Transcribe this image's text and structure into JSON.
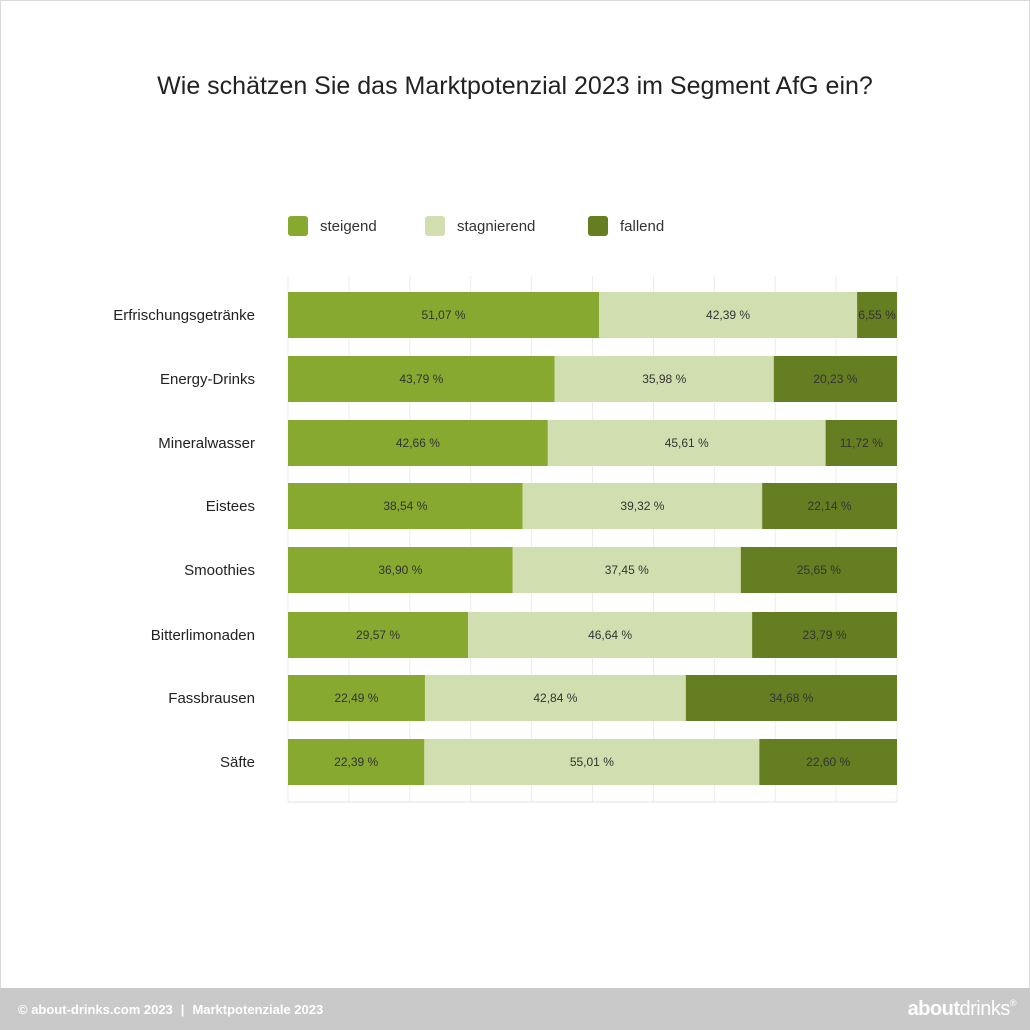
{
  "title": "Wie schätzen Sie das Marktpotenzial 2023 im Segment AfG ein?",
  "legend": [
    {
      "label": "steigend",
      "color": "#87a930"
    },
    {
      "label": "stagnierend",
      "color": "#d1dfb0"
    },
    {
      "label": "fallend",
      "color": "#667e22"
    }
  ],
  "chart_data": {
    "type": "bar",
    "orientation": "horizontal",
    "stacked": true,
    "title": "Wie schätzen Sie das Marktpotenzial 2023 im Segment AfG ein?",
    "categories": [
      "Erfrischungsgetränke",
      "Energy-Drinks",
      "Mineralwasser",
      "Eistees",
      "Smoothies",
      "Bitterlimonaden",
      "Fassbrausen",
      "Säfte"
    ],
    "series": [
      {
        "name": "steigend",
        "color": "#87a930",
        "values": [
          51.07,
          43.79,
          42.66,
          38.54,
          36.9,
          29.57,
          22.49,
          22.39
        ],
        "labels": [
          "51,07 %",
          "43,79 %",
          "42,66 %",
          "38,54 %",
          "36,90 %",
          "29,57 %",
          "22,49 %",
          "22,39 %"
        ]
      },
      {
        "name": "stagnierend",
        "color": "#d1dfb0",
        "values": [
          42.39,
          35.98,
          45.61,
          39.32,
          37.45,
          46.64,
          42.84,
          55.01
        ],
        "labels": [
          "42,39 %",
          "35,98 %",
          "45,61 %",
          "39,32 %",
          "37,45 %",
          "46,64 %",
          "42,84 %",
          "55,01 %"
        ]
      },
      {
        "name": "fallend",
        "color": "#667e22",
        "values": [
          6.55,
          20.23,
          11.72,
          22.14,
          25.65,
          23.79,
          34.68,
          22.6
        ],
        "labels": [
          "6,55 %",
          "20,23 %",
          "11,72 %",
          "22,14 %",
          "25,65 %",
          "23,79 %",
          "34,68 %",
          "22,60 %"
        ]
      }
    ],
    "xlim": [
      0,
      100
    ],
    "grid": true,
    "legend_position": "top"
  },
  "footer": {
    "left": "© about-drinks.com 2023",
    "separator": "|",
    "right": "Marktpotenziale 2023",
    "logo_bold": "about",
    "logo_light": "drinks",
    "logo_mark": "®"
  }
}
